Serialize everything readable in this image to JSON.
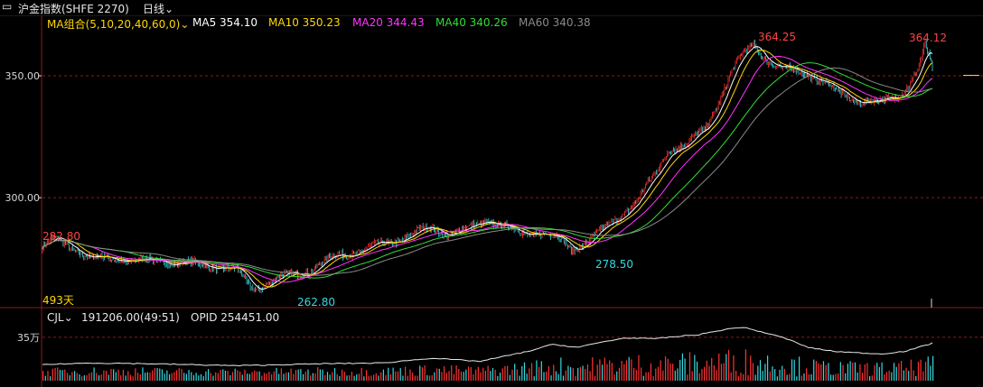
{
  "header": {
    "title": "沪金指数(SHFE 2270)",
    "period": "日线",
    "period_icon": "chevron-down-icon",
    "window_icon": "window-toggle-icon"
  },
  "ma_legend": {
    "group_label": "MA组合(5,10,20,40,60,0)",
    "items": [
      {
        "label": "MA5 354.10",
        "color": "#ffffff"
      },
      {
        "label": "MA10 350.23",
        "color": "#ffd700"
      },
      {
        "label": "MA20 344.43",
        "color": "#ff33ff"
      },
      {
        "label": "MA40 340.26",
        "color": "#33dd33"
      },
      {
        "label": "MA60 340.38",
        "color": "#8a8a8a"
      }
    ]
  },
  "colors": {
    "up": "#ff3333",
    "down": "#36d8e0",
    "grid": "#8b1a1a",
    "axis": "#8b1a1a"
  },
  "volume_panel": {
    "label": "CJL",
    "value": "191206.00(49:51)",
    "opid": "OPID 254451.00",
    "axis_label": "35万"
  },
  "annotations": {
    "high1": "364.25",
    "high2": "364.12",
    "start": "282.80",
    "low1": "262.80",
    "low2": "278.50",
    "days": "493天"
  },
  "chart_data": {
    "type": "candlestick",
    "ylim": [
      256,
      370
    ],
    "yticks": [
      300.0,
      350.0
    ],
    "ytick_labels": [
      "300.00",
      "350.00"
    ],
    "volume_ylim": [
      0,
      480000
    ],
    "volume_ticks": [
      350000
    ],
    "price_path": [
      [
        0,
        280
      ],
      [
        10,
        282.8
      ],
      [
        20,
        281
      ],
      [
        40,
        275
      ],
      [
        60,
        275
      ],
      [
        80,
        274
      ],
      [
        100,
        274
      ],
      [
        120,
        273
      ],
      [
        140,
        272
      ],
      [
        160,
        270
      ],
      [
        170,
        264
      ],
      [
        175,
        262.8
      ],
      [
        185,
        265
      ],
      [
        200,
        268
      ],
      [
        220,
        270
      ],
      [
        240,
        276
      ],
      [
        260,
        278
      ],
      [
        280,
        281
      ],
      [
        300,
        284
      ],
      [
        320,
        288
      ],
      [
        335,
        285
      ],
      [
        350,
        287
      ],
      [
        365,
        291
      ],
      [
        380,
        288
      ],
      [
        395,
        285
      ],
      [
        410,
        286
      ],
      [
        425,
        283
      ],
      [
        435,
        278.5
      ],
      [
        450,
        283
      ],
      [
        470,
        290
      ],
      [
        490,
        300
      ],
      [
        505,
        310
      ],
      [
        515,
        320
      ],
      [
        530,
        322
      ],
      [
        545,
        328
      ],
      [
        555,
        338
      ],
      [
        565,
        350
      ],
      [
        575,
        358
      ],
      [
        585,
        363
      ],
      [
        595,
        357
      ],
      [
        610,
        352
      ],
      [
        625,
        352
      ],
      [
        640,
        348
      ],
      [
        655,
        343
      ],
      [
        670,
        340
      ],
      [
        685,
        339
      ],
      [
        700,
        341
      ],
      [
        710,
        345
      ],
      [
        720,
        352
      ],
      [
        726,
        362
      ],
      [
        732,
        353
      ]
    ],
    "ma_paths": [
      {
        "name": "MA5",
        "color": "#ffffff",
        "lag": 3,
        "smooth": 3
      },
      {
        "name": "MA10",
        "color": "#ffd700",
        "lag": 6,
        "smooth": 6
      },
      {
        "name": "MA20",
        "color": "#ff33ff",
        "lag": 12,
        "smooth": 12
      },
      {
        "name": "MA40",
        "color": "#33dd33",
        "lag": 24,
        "smooth": 22
      },
      {
        "name": "MA60",
        "color": "#8a8a8a",
        "lag": 36,
        "smooth": 30
      }
    ],
    "open_interest_path": [
      [
        0,
        0.3
      ],
      [
        40,
        0.33
      ],
      [
        80,
        0.32
      ],
      [
        120,
        0.3
      ],
      [
        160,
        0.28
      ],
      [
        200,
        0.3
      ],
      [
        240,
        0.32
      ],
      [
        280,
        0.33
      ],
      [
        320,
        0.42
      ],
      [
        360,
        0.36
      ],
      [
        400,
        0.55
      ],
      [
        420,
        0.68
      ],
      [
        440,
        0.62
      ],
      [
        460,
        0.72
      ],
      [
        480,
        0.8
      ],
      [
        500,
        0.78
      ],
      [
        520,
        0.82
      ],
      [
        540,
        0.86
      ],
      [
        560,
        0.95
      ],
      [
        575,
        1.0
      ],
      [
        590,
        0.92
      ],
      [
        610,
        0.8
      ],
      [
        630,
        0.62
      ],
      [
        650,
        0.55
      ],
      [
        670,
        0.52
      ],
      [
        690,
        0.5
      ],
      [
        710,
        0.55
      ],
      [
        725,
        0.65
      ],
      [
        732,
        0.7
      ]
    ]
  }
}
